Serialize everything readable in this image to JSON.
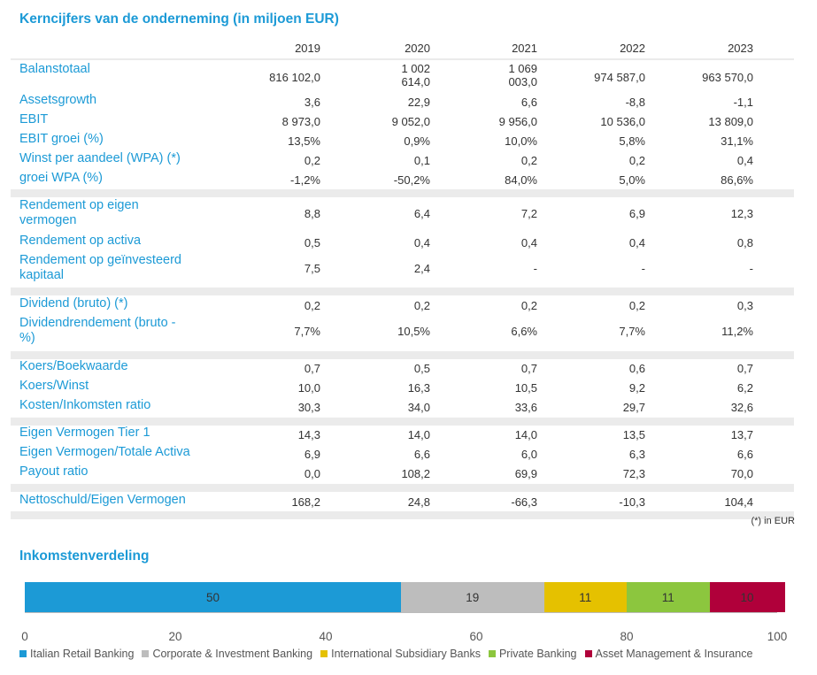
{
  "title": "Kerncijfers van de onderneming (in miljoen EUR)",
  "years": [
    "2019",
    "2020",
    "2021",
    "2022",
    "2023"
  ],
  "groups": [
    {
      "rows": [
        {
          "label": "Balanstotaal",
          "values": [
            "816 102,0",
            "1 002\n614,0",
            "1 069\n003,0",
            "974 587,0",
            "963 570,0"
          ]
        },
        {
          "label": "Assetsgrowth",
          "values": [
            "3,6",
            "22,9",
            "6,6",
            "-8,8",
            "-1,1"
          ]
        },
        {
          "label": "EBIT",
          "values": [
            "8 973,0",
            "9 052,0",
            "9 956,0",
            "10 536,0",
            "13 809,0"
          ]
        },
        {
          "label": "EBIT groei (%)",
          "values": [
            "13,5%",
            "0,9%",
            "10,0%",
            "5,8%",
            "31,1%"
          ]
        },
        {
          "label": "Winst per aandeel (WPA) (*)",
          "values": [
            "0,2",
            "0,1",
            "0,2",
            "0,2",
            "0,4"
          ]
        },
        {
          "label": "groei WPA (%)",
          "values": [
            "-1,2%",
            "-50,2%",
            "84,0%",
            "5,0%",
            "86,6%"
          ]
        }
      ]
    },
    {
      "rows": [
        {
          "label": "Rendement op eigen\nvermogen",
          "values": [
            "8,8",
            "6,4",
            "7,2",
            "6,9",
            "12,3"
          ]
        },
        {
          "label": "Rendement op activa",
          "values": [
            "0,5",
            "0,4",
            "0,4",
            "0,4",
            "0,8"
          ]
        },
        {
          "label": "Rendement op geïnvesteerd\nkapitaal",
          "values": [
            "7,5",
            "2,4",
            "-",
            "-",
            "-"
          ]
        }
      ]
    },
    {
      "rows": [
        {
          "label": "Dividend (bruto) (*)",
          "values": [
            "0,2",
            "0,2",
            "0,2",
            "0,2",
            "0,3"
          ]
        },
        {
          "label": "Dividendrendement (bruto -\n%)",
          "values": [
            "7,7%",
            "10,5%",
            "6,6%",
            "7,7%",
            "11,2%"
          ]
        }
      ]
    },
    {
      "rows": [
        {
          "label": "Koers/Boekwaarde",
          "values": [
            "0,7",
            "0,5",
            "0,7",
            "0,6",
            "0,7"
          ]
        },
        {
          "label": "Koers/Winst",
          "values": [
            "10,0",
            "16,3",
            "10,5",
            "9,2",
            "6,2"
          ]
        },
        {
          "label": "Kosten/Inkomsten ratio",
          "values": [
            "30,3",
            "34,0",
            "33,6",
            "29,7",
            "32,6"
          ]
        }
      ]
    },
    {
      "rows": [
        {
          "label": "Eigen Vermogen Tier 1",
          "values": [
            "14,3",
            "14,0",
            "14,0",
            "13,5",
            "13,7"
          ]
        },
        {
          "label": "Eigen Vermogen/Totale Activa",
          "values": [
            "6,9",
            "6,6",
            "6,0",
            "6,3",
            "6,6"
          ]
        },
        {
          "label": "Payout ratio",
          "values": [
            "0,0",
            "108,2",
            "69,9",
            "72,3",
            "70,0"
          ]
        }
      ]
    },
    {
      "rows": [
        {
          "label": "Nettoschuld/Eigen Vermogen",
          "values": [
            "168,2",
            "24,8",
            "-66,3",
            "-10,3",
            "104,4"
          ]
        }
      ]
    }
  ],
  "footnote": "(*) in EUR",
  "income_title": "Inkomstenverdeling",
  "chart_data": {
    "type": "bar",
    "stacked": true,
    "orientation": "horizontal",
    "title": "Inkomstenverdeling",
    "xlim": [
      0,
      100
    ],
    "xticks": [
      "0",
      "20",
      "40",
      "60",
      "80",
      "100"
    ],
    "legend_position": "bottom",
    "series": [
      {
        "name": "Italian Retail Banking",
        "value": 50,
        "label": "50",
        "color": "#1c9ad6"
      },
      {
        "name": "Corporate & Investment Banking",
        "value": 19,
        "label": "19",
        "color": "#bdbdbd"
      },
      {
        "name": "International Subsidiary Banks",
        "value": 11,
        "label": "11",
        "color": "#e5c100"
      },
      {
        "name": "Private Banking",
        "value": 11,
        "label": "11",
        "color": "#8cc63e"
      },
      {
        "name": "Asset Management & Insurance",
        "value": 10,
        "label": "10",
        "color": "#b0003a"
      }
    ]
  }
}
